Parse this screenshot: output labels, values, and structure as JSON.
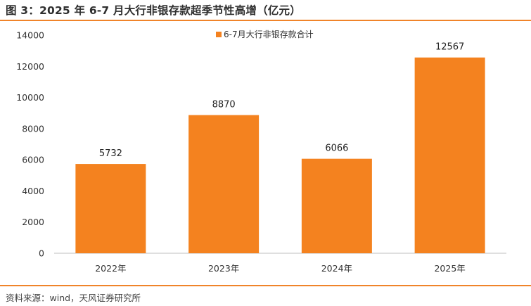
{
  "figure": {
    "title": "图 3：2025 年 6-7 月大行非银存款超季节性高增（亿元）",
    "source": "资料来源：wind，天风证券研究所"
  },
  "colors": {
    "bar": "#f4821f",
    "accent_rule": "#f0842a",
    "text": "#333333",
    "axis": "#bfbfbf"
  },
  "chart_data": {
    "type": "bar",
    "title": "",
    "xlabel": "",
    "ylabel": "",
    "categories": [
      "2022年",
      "2023年",
      "2024年",
      "2025年"
    ],
    "series": [
      {
        "name": "6-7月大行非银存款合计",
        "values": [
          5732,
          8870,
          6066,
          12567
        ]
      }
    ],
    "ylim": [
      0,
      14000
    ],
    "yticks": [
      0,
      2000,
      4000,
      6000,
      8000,
      10000,
      12000,
      14000
    ],
    "grid": false,
    "legend": "top-center",
    "data_labels": true
  }
}
